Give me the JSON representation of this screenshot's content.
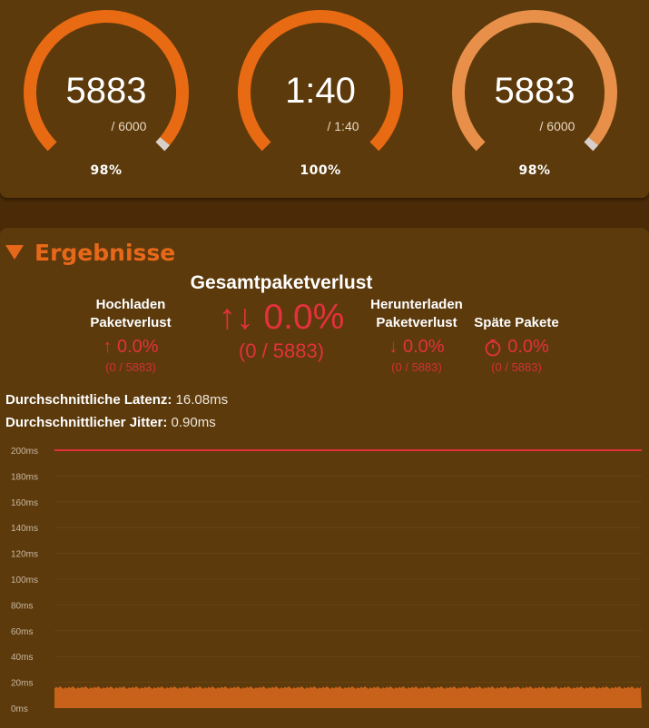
{
  "gauges": [
    {
      "value": "5883",
      "total": "/ 6000",
      "percent_label": "98%",
      "progress": 0.98,
      "color": "#e86a12"
    },
    {
      "value": "1:40",
      "total": "/ 1:40",
      "percent_label": "100%",
      "progress": 1.0,
      "color": "#e86a12"
    },
    {
      "value": "5883",
      "total": "/ 6000",
      "percent_label": "98%",
      "progress": 0.98,
      "color": "#e8904a"
    }
  ],
  "results": {
    "title": "Ergebnisse",
    "total_loss": {
      "label": "Gesamtpaketverlust",
      "value": "↑↓ 0.0%",
      "sub": "(0 / 5883)"
    },
    "upload_loss": {
      "label_line1": "Hochladen",
      "label_line2": "Paketverlust",
      "value": "↑ 0.0%",
      "sub": "(0 / 5883)"
    },
    "download_loss": {
      "label_line1": "Herunterladen",
      "label_line2": "Paketverlust",
      "value": "↓ 0.0%",
      "sub": "(0 / 5883)"
    },
    "late_packets": {
      "label": "Späte Pakete",
      "icon": "stopwatch-icon",
      "value": "0.0%",
      "sub": "(0 / 5883)"
    },
    "avg_latency": {
      "label": "Durchschnittliche Latenz:",
      "value": "16.08ms"
    },
    "avg_jitter": {
      "label": "Durchschnittlicher Jitter:",
      "value": "0.90ms"
    }
  },
  "colors": {
    "accent": "#e8681a",
    "loss_red": "#e4313d",
    "panel": "#5c3a0c",
    "background": "#4a2a07"
  },
  "chart_data": {
    "type": "area",
    "ylabel": "",
    "xlabel": "",
    "y_ticks": [
      "200ms",
      "180ms",
      "160ms",
      "140ms",
      "120ms",
      "100ms",
      "80ms",
      "60ms",
      "40ms",
      "20ms",
      "0ms"
    ],
    "ylim": [
      0,
      200
    ],
    "series": [
      {
        "values_approx": 16,
        "color": "#c8621a"
      }
    ],
    "threshold_line": {
      "value": 200,
      "color": "#e4313d"
    },
    "grid": true
  }
}
